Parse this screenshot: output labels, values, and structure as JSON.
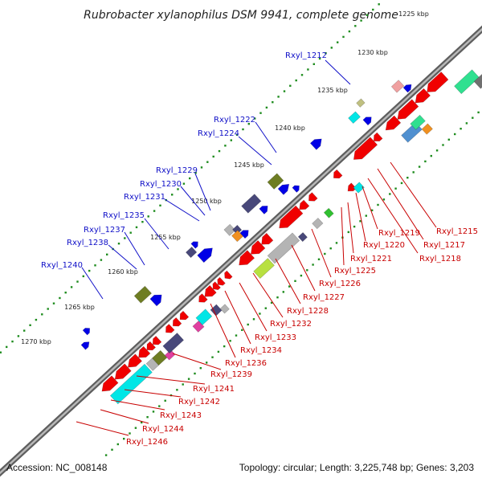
{
  "title": "Rubrobacter xylanophilus DSM 9941, complete genome",
  "footer": {
    "accession": "Accession: NC_008148",
    "topology": "Topology: circular; Length: 3,225,748 bp; Genes: 3,203"
  },
  "ruler_ticks": [
    "1225 kbp",
    "1230 kbp",
    "1235 kbp",
    "1240 kbp",
    "1245 kbp",
    "1250 kbp",
    "1255 kbp",
    "1260 kbp",
    "1265 kbp",
    "1270 kbp"
  ],
  "genes_forward": [
    "Rxyl_1212",
    "Rxyl_1222",
    "Rxyl_1224",
    "Rxyl_1229",
    "Rxyl_1230",
    "Rxyl_1231",
    "Rxyl_1235",
    "Rxyl_1237",
    "Rxyl_1238",
    "Rxyl_1240"
  ],
  "genes_reverse": [
    "Rxyl_1215",
    "Rxyl_1217",
    "Rxyl_1218",
    "Rxyl_1219",
    "Rxyl_1220",
    "Rxyl_1221",
    "Rxyl_1225",
    "Rxyl_1226",
    "Rxyl_1227",
    "Rxyl_1228",
    "Rxyl_1232",
    "Rxyl_1233",
    "Rxyl_1234",
    "Rxyl_1236",
    "Rxyl_1239",
    "Rxyl_1241",
    "Rxyl_1242",
    "Rxyl_1243",
    "Rxyl_1244",
    "Rxyl_1246"
  ],
  "colors": {
    "forward_label": "#1010c8",
    "reverse_label": "#c80000",
    "backbone": "#808080",
    "ruler_dots": "#1e8c1e",
    "cds_red": "#f00000",
    "cds_blue": "#0000e6",
    "cds_cyan": "#00e6e6",
    "cds_olive": "#6e7d23",
    "cds_slate": "#48487a",
    "cds_gray": "#b4b4b4"
  }
}
